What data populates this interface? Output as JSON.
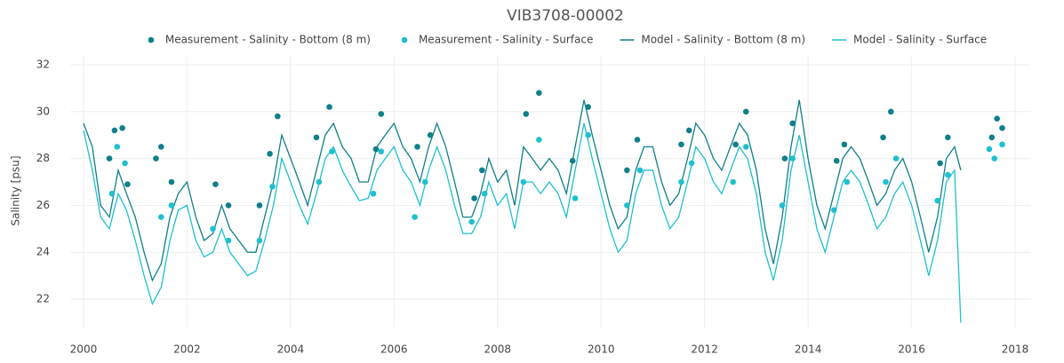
{
  "chart_data": {
    "type": "line",
    "title": "VIB3708-00002",
    "ylabel": "Salinity [psu]",
    "xlim": [
      1999.75,
      2018.3
    ],
    "ylim": [
      20.8,
      32.4
    ],
    "xticks": [
      2000,
      2002,
      2004,
      2006,
      2008,
      2010,
      2012,
      2014,
      2016,
      2018
    ],
    "yticks": [
      22,
      24,
      26,
      28,
      30,
      32
    ],
    "grid": true,
    "legend": "top",
    "series": [
      {
        "name": "Measurement - Salinity - Bottom (8 m)",
        "color": "#0f7f8a",
        "mode": "markers",
        "x": [
          2000.5,
          2000.6,
          2000.75,
          2000.85,
          2001.4,
          2001.5,
          2001.7,
          2002.55,
          2002.8,
          2003.4,
          2003.6,
          2003.75,
          2004.5,
          2004.75,
          2005.65,
          2005.75,
          2006.45,
          2006.7,
          2007.55,
          2007.7,
          2008.55,
          2008.8,
          2009.45,
          2009.75,
          2010.5,
          2010.7,
          2011.55,
          2011.7,
          2012.6,
          2012.8,
          2013.55,
          2013.7,
          2014.55,
          2014.7,
          2015.45,
          2015.6,
          2016.55,
          2016.7,
          2017.55,
          2017.65,
          2017.75
        ],
        "values": [
          28.0,
          29.2,
          29.3,
          26.9,
          28.0,
          28.5,
          27.0,
          26.9,
          26.0,
          26.0,
          28.2,
          29.8,
          28.9,
          30.2,
          28.4,
          29.9,
          28.5,
          29.0,
          26.3,
          27.5,
          29.9,
          30.8,
          27.9,
          30.2,
          27.5,
          28.8,
          28.6,
          29.2,
          28.6,
          30.0,
          28.0,
          29.5,
          27.9,
          28.6,
          28.9,
          30.0,
          27.8,
          28.9,
          28.9,
          29.7,
          29.3
        ]
      },
      {
        "name": "Measurement - Salinity - Surface",
        "color": "#1fbfd0",
        "mode": "markers",
        "x": [
          2000.55,
          2000.65,
          2000.8,
          2001.5,
          2001.7,
          2002.5,
          2002.8,
          2003.4,
          2003.65,
          2004.55,
          2004.8,
          2005.6,
          2005.75,
          2006.4,
          2006.6,
          2007.5,
          2007.75,
          2008.5,
          2008.8,
          2009.5,
          2009.75,
          2010.5,
          2010.75,
          2011.55,
          2011.75,
          2012.55,
          2012.8,
          2013.5,
          2013.7,
          2014.5,
          2014.75,
          2015.5,
          2015.7,
          2016.5,
          2016.7,
          2017.5,
          2017.6,
          2017.75
        ],
        "values": [
          26.5,
          28.5,
          27.8,
          25.5,
          26.0,
          25.0,
          24.5,
          24.5,
          26.8,
          27.0,
          28.3,
          26.5,
          28.3,
          25.5,
          27.0,
          25.3,
          26.5,
          27.0,
          28.8,
          26.3,
          29.0,
          26.0,
          27.5,
          27.0,
          27.8,
          27.0,
          28.5,
          26.0,
          28.0,
          25.8,
          27.0,
          27.0,
          28.0,
          26.2,
          27.3,
          28.4,
          28.0,
          28.6
        ]
      },
      {
        "name": "Model - Salinity - Bottom (8 m)",
        "color": "#0f7f8a",
        "mode": "lines",
        "x": [
          2000,
          2000.17,
          2000.33,
          2000.5,
          2000.67,
          2000.83,
          2001,
          2001.17,
          2001.33,
          2001.5,
          2001.67,
          2001.83,
          2002,
          2002.17,
          2002.33,
          2002.5,
          2002.67,
          2002.83,
          2003,
          2003.17,
          2003.33,
          2003.5,
          2003.67,
          2003.83,
          2004,
          2004.17,
          2004.33,
          2004.5,
          2004.67,
          2004.83,
          2005,
          2005.17,
          2005.33,
          2005.5,
          2005.67,
          2005.83,
          2006,
          2006.17,
          2006.33,
          2006.5,
          2006.67,
          2006.83,
          2007,
          2007.17,
          2007.33,
          2007.5,
          2007.67,
          2007.83,
          2008,
          2008.17,
          2008.33,
          2008.5,
          2008.67,
          2008.83,
          2009,
          2009.17,
          2009.33,
          2009.5,
          2009.67,
          2009.83,
          2010,
          2010.17,
          2010.33,
          2010.5,
          2010.67,
          2010.83,
          2011,
          2011.17,
          2011.33,
          2011.5,
          2011.67,
          2011.83,
          2012,
          2012.17,
          2012.33,
          2012.5,
          2012.67,
          2012.83,
          2013,
          2013.17,
          2013.33,
          2013.5,
          2013.67,
          2013.83,
          2014,
          2014.17,
          2014.33,
          2014.5,
          2014.67,
          2014.83,
          2015,
          2015.17,
          2015.33,
          2015.5,
          2015.67,
          2015.83,
          2016,
          2016.17,
          2016.33,
          2016.5,
          2016.67,
          2016.83,
          2016.95
        ],
        "values": [
          29.5,
          28.5,
          26.0,
          25.5,
          27.5,
          26.5,
          25.5,
          24.0,
          22.8,
          23.5,
          25.5,
          26.5,
          27.0,
          25.5,
          24.5,
          24.8,
          26.0,
          25.0,
          24.5,
          24.0,
          24.0,
          25.5,
          27.0,
          29.0,
          28.0,
          27.0,
          26.0,
          27.5,
          29.0,
          29.5,
          28.5,
          28.0,
          27.0,
          27.0,
          28.5,
          29.0,
          29.5,
          28.5,
          28.0,
          27.0,
          28.5,
          29.5,
          28.5,
          27.0,
          25.5,
          25.5,
          26.5,
          28.0,
          27.0,
          27.5,
          26.0,
          28.5,
          28.0,
          27.5,
          28.0,
          27.5,
          26.5,
          28.5,
          30.5,
          29.0,
          27.5,
          26.0,
          25.0,
          25.5,
          27.5,
          28.5,
          28.5,
          27.0,
          26.0,
          26.5,
          28.0,
          29.5,
          29.0,
          28.0,
          27.5,
          28.5,
          29.5,
          29.0,
          27.5,
          25.0,
          23.5,
          25.5,
          28.5,
          30.5,
          28.0,
          26.0,
          25.0,
          26.5,
          28.0,
          28.5,
          28.0,
          27.0,
          26.0,
          26.5,
          27.5,
          28.0,
          27.0,
          25.5,
          24.0,
          25.5,
          28.0,
          28.5,
          27.5
        ]
      },
      {
        "name": "Model - Salinity - Surface",
        "color": "#1fbfd0",
        "mode": "lines",
        "x": [
          2000,
          2000.17,
          2000.33,
          2000.5,
          2000.67,
          2000.83,
          2001,
          2001.17,
          2001.33,
          2001.5,
          2001.67,
          2001.83,
          2002,
          2002.17,
          2002.33,
          2002.5,
          2002.67,
          2002.83,
          2003,
          2003.17,
          2003.33,
          2003.5,
          2003.67,
          2003.83,
          2004,
          2004.17,
          2004.33,
          2004.5,
          2004.67,
          2004.83,
          2005,
          2005.17,
          2005.33,
          2005.5,
          2005.67,
          2005.83,
          2006,
          2006.17,
          2006.33,
          2006.5,
          2006.67,
          2006.83,
          2007,
          2007.17,
          2007.33,
          2007.5,
          2007.67,
          2007.83,
          2008,
          2008.17,
          2008.33,
          2008.5,
          2008.67,
          2008.83,
          2009,
          2009.17,
          2009.33,
          2009.5,
          2009.67,
          2009.83,
          2010,
          2010.17,
          2010.33,
          2010.5,
          2010.67,
          2010.83,
          2011,
          2011.17,
          2011.33,
          2011.5,
          2011.67,
          2011.83,
          2012,
          2012.17,
          2012.33,
          2012.5,
          2012.67,
          2012.83,
          2013,
          2013.17,
          2013.33,
          2013.5,
          2013.67,
          2013.83,
          2014,
          2014.17,
          2014.33,
          2014.5,
          2014.67,
          2014.83,
          2015,
          2015.17,
          2015.33,
          2015.5,
          2015.67,
          2015.83,
          2016,
          2016.17,
          2016.33,
          2016.5,
          2016.67,
          2016.83,
          2016.95
        ],
        "values": [
          29.2,
          27.5,
          25.5,
          25.0,
          26.5,
          25.8,
          24.5,
          23.0,
          21.8,
          22.5,
          24.5,
          25.8,
          26.0,
          24.5,
          23.8,
          24.0,
          25.0,
          24.0,
          23.5,
          23.0,
          23.2,
          24.5,
          26.0,
          28.0,
          27.0,
          26.0,
          25.2,
          26.5,
          28.0,
          28.5,
          27.5,
          26.8,
          26.2,
          26.3,
          27.5,
          28.0,
          28.5,
          27.5,
          27.0,
          26.0,
          27.5,
          28.5,
          27.5,
          26.0,
          24.8,
          24.8,
          25.5,
          27.0,
          26.0,
          26.5,
          25.0,
          27.0,
          27.0,
          26.5,
          27.0,
          26.5,
          25.5,
          27.5,
          29.5,
          28.0,
          26.5,
          25.0,
          24.0,
          24.5,
          26.5,
          27.5,
          27.5,
          26.0,
          25.0,
          25.5,
          27.0,
          28.5,
          28.0,
          27.0,
          26.5,
          27.5,
          28.5,
          28.0,
          26.5,
          24.0,
          22.8,
          24.5,
          27.5,
          29.0,
          27.0,
          25.0,
          24.0,
          25.5,
          27.0,
          27.5,
          27.0,
          26.0,
          25.0,
          25.5,
          26.5,
          27.0,
          26.0,
          24.5,
          23.0,
          24.5,
          27.0,
          27.5,
          21.0
        ]
      }
    ]
  }
}
